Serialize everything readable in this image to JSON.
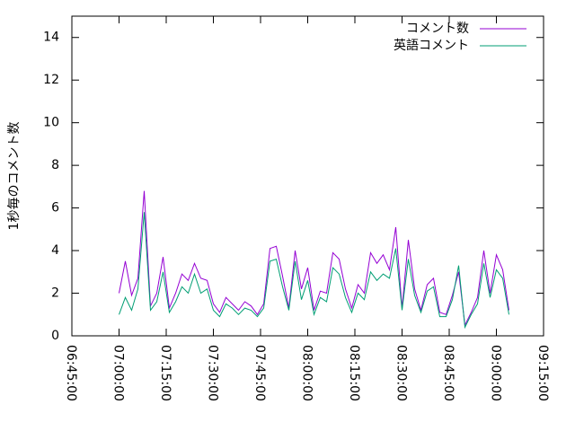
{
  "chart_data": {
    "type": "line",
    "y_label": "1秒毎のコメント数",
    "x": [
      "07:00:00",
      "07:02:00",
      "07:04:00",
      "07:06:00",
      "07:08:00",
      "07:10:00",
      "07:12:00",
      "07:14:00",
      "07:16:00",
      "07:18:00",
      "07:20:00",
      "07:22:00",
      "07:24:00",
      "07:26:00",
      "07:28:00",
      "07:30:00",
      "07:32:00",
      "07:34:00",
      "07:36:00",
      "07:38:00",
      "07:40:00",
      "07:42:00",
      "07:44:00",
      "07:46:00",
      "07:48:00",
      "07:50:00",
      "07:52:00",
      "07:54:00",
      "07:56:00",
      "07:58:00",
      "08:00:00",
      "08:02:00",
      "08:04:00",
      "08:06:00",
      "08:08:00",
      "08:10:00",
      "08:12:00",
      "08:14:00",
      "08:16:00",
      "08:18:00",
      "08:20:00",
      "08:22:00",
      "08:24:00",
      "08:26:00",
      "08:28:00",
      "08:30:00",
      "08:32:00",
      "08:34:00",
      "08:36:00",
      "08:38:00",
      "08:40:00",
      "08:42:00",
      "08:44:00",
      "08:46:00",
      "08:48:00",
      "08:50:00",
      "08:52:00",
      "08:54:00",
      "08:56:00",
      "08:58:00",
      "09:00:00",
      "09:02:00",
      "09:04:00"
    ],
    "series": [
      {
        "name": "コメント数",
        "color": "#9400d3",
        "values": [
          2.0,
          3.5,
          1.9,
          2.7,
          6.8,
          1.4,
          2.0,
          3.7,
          1.3,
          2.0,
          2.9,
          2.6,
          3.4,
          2.7,
          2.6,
          1.5,
          1.1,
          1.8,
          1.5,
          1.2,
          1.6,
          1.4,
          1.0,
          1.5,
          4.1,
          4.2,
          2.8,
          1.3,
          4.0,
          2.2,
          3.2,
          1.2,
          2.1,
          2.0,
          3.9,
          3.6,
          2.2,
          1.3,
          2.4,
          2.0,
          3.9,
          3.4,
          3.8,
          3.1,
          5.1,
          1.3,
          4.5,
          2.2,
          1.2,
          2.4,
          2.7,
          1.1,
          1.0,
          1.9,
          3.0,
          0.5,
          1.1,
          1.8,
          4.0,
          2.0,
          3.8,
          3.1,
          1.2
        ]
      },
      {
        "name": "英語コメント",
        "color": "#009e73",
        "values": [
          1.0,
          1.8,
          1.2,
          2.2,
          5.8,
          1.2,
          1.6,
          3.0,
          1.1,
          1.6,
          2.3,
          2.0,
          2.9,
          2.0,
          2.2,
          1.2,
          0.9,
          1.5,
          1.3,
          1.0,
          1.3,
          1.2,
          0.9,
          1.3,
          3.5,
          3.6,
          2.3,
          1.2,
          3.5,
          1.7,
          2.6,
          1.0,
          1.8,
          1.6,
          3.2,
          2.9,
          1.8,
          1.1,
          2.0,
          1.7,
          3.0,
          2.6,
          2.9,
          2.7,
          4.1,
          1.2,
          3.6,
          1.9,
          1.1,
          2.1,
          2.3,
          0.9,
          0.9,
          1.7,
          3.3,
          0.4,
          1.0,
          1.5,
          3.4,
          1.8,
          3.1,
          2.7,
          1.0
        ]
      }
    ],
    "xlim": [
      "06:45:00",
      "09:15:00"
    ],
    "xticks": [
      "06:45:00",
      "07:00:00",
      "07:15:00",
      "07:30:00",
      "07:45:00",
      "08:00:00",
      "08:15:00",
      "08:30:00",
      "08:45:00",
      "09:00:00",
      "09:15:00"
    ],
    "ylim": [
      0,
      15
    ],
    "yticks": [
      0,
      2,
      4,
      6,
      8,
      10,
      12,
      14
    ],
    "legend": "top-right"
  }
}
